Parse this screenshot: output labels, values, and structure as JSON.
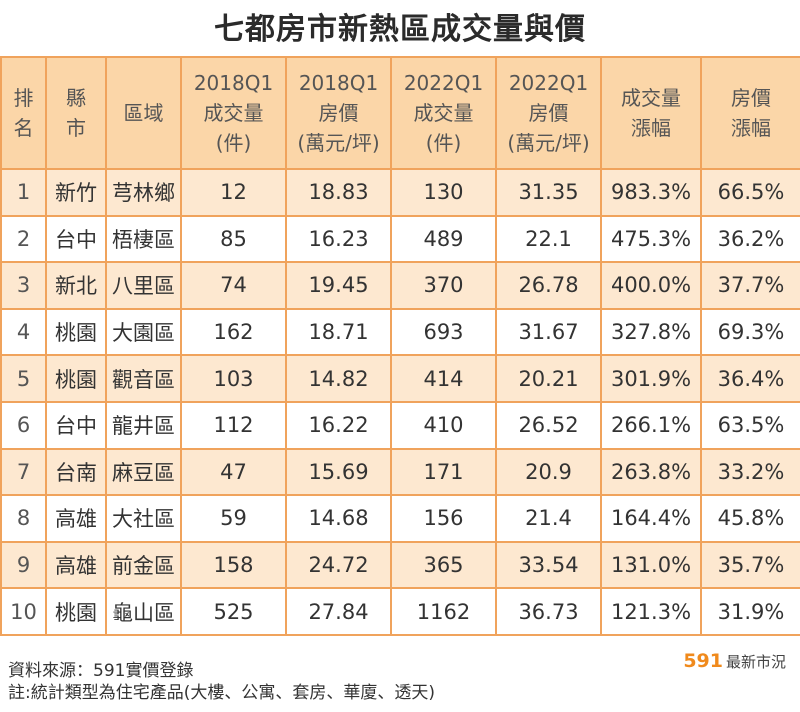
{
  "title": "七都房市新熱區成交量與價",
  "headers": [
    [
      "排",
      "名"
    ],
    [
      "縣",
      "市"
    ],
    [
      "區域"
    ],
    [
      "2018Q1",
      "成交量",
      "(件)"
    ],
    [
      "2018Q1",
      "房價",
      "(萬元/坪)"
    ],
    [
      "2022Q1",
      "成交量",
      "(件)"
    ],
    [
      "2022Q1",
      "房價",
      "(萬元/坪)"
    ],
    [
      "成交量",
      "漲幅"
    ],
    [
      "房價",
      "漲幅"
    ]
  ],
  "rows": [
    [
      "1",
      "新竹",
      "芎林鄉",
      "12",
      "18.83",
      "130",
      "31.35",
      "983.3%",
      "66.5%"
    ],
    [
      "2",
      "台中",
      "梧棲區",
      "85",
      "16.23",
      "489",
      "22.1",
      "475.3%",
      "36.2%"
    ],
    [
      "3",
      "新北",
      "八里區",
      "74",
      "19.45",
      "370",
      "26.78",
      "400.0%",
      "37.7%"
    ],
    [
      "4",
      "桃園",
      "大園區",
      "162",
      "18.71",
      "693",
      "31.67",
      "327.8%",
      "69.3%"
    ],
    [
      "5",
      "桃園",
      "觀音區",
      "103",
      "14.82",
      "414",
      "20.21",
      "301.9%",
      "36.4%"
    ],
    [
      "6",
      "台中",
      "龍井區",
      "112",
      "16.22",
      "410",
      "26.52",
      "266.1%",
      "63.5%"
    ],
    [
      "7",
      "台南",
      "麻豆區",
      "47",
      "15.69",
      "171",
      "20.9",
      "263.8%",
      "33.2%"
    ],
    [
      "8",
      "高雄",
      "大社區",
      "59",
      "14.68",
      "156",
      "21.4",
      "164.4%",
      "45.8%"
    ],
    [
      "9",
      "高雄",
      "前金區",
      "158",
      "24.72",
      "365",
      "33.54",
      "131.0%",
      "35.7%"
    ],
    [
      "10",
      "桃園",
      "龜山區",
      "525",
      "27.84",
      "1162",
      "36.73",
      "121.3%",
      "31.9%"
    ]
  ],
  "footer": {
    "source": "資料來源：591實價登錄",
    "note": "註:統計類型為住宅產品(大樓、公寓、套房、華廈、透天)"
  },
  "logo": {
    "number": "591",
    "text": "最新市況"
  },
  "colors": {
    "header_bg": "#fbd6a8",
    "stripe_bg": "#fde8d0",
    "border": "#f0a35c",
    "logo_accent": "#f08a1c"
  }
}
